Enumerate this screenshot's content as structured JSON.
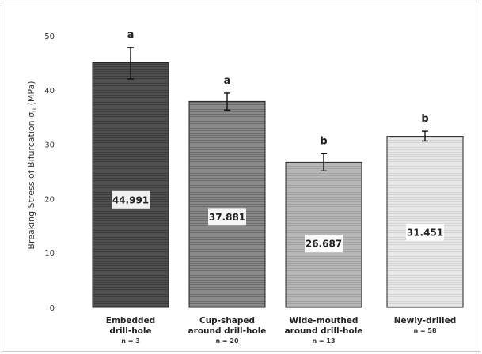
{
  "chart_data": {
    "type": "bar",
    "ylabel_prefix": "Breaking Stress of Bifurcation σ",
    "ylabel_sub": "u",
    "ylabel_suffix": " (MPa)",
    "ylim": [
      0,
      50
    ],
    "yticks": [
      0,
      10,
      20,
      30,
      40,
      50
    ],
    "grid": false,
    "legend": "none",
    "categories": [
      {
        "label_lines": [
          "Embedded",
          "drill-hole"
        ],
        "n_text": "n = 3",
        "value": 44.991,
        "value_label": "44.991",
        "error_low": 42.0,
        "error_high": 47.8,
        "group_letter": "a",
        "fill": "#505050",
        "stripe": "#3c3c3c"
      },
      {
        "label_lines": [
          "Cup-shaped",
          "around drill-hole"
        ],
        "n_text": "n = 20",
        "value": 37.881,
        "value_label": "37.881",
        "error_low": 36.3,
        "error_high": 39.4,
        "group_letter": "a",
        "fill": "#8a8a8a",
        "stripe": "#6c6c6c"
      },
      {
        "label_lines": [
          "Wide-mouthed",
          "around drill-hole"
        ],
        "n_text": "n = 13",
        "value": 26.687,
        "value_label": "26.687",
        "error_low": 25.1,
        "error_high": 28.3,
        "group_letter": "b",
        "fill": "#b7b7b7",
        "stripe": "#a2a2a2"
      },
      {
        "label_lines": [
          "Newly-drilled"
        ],
        "n_text": "n = 58",
        "value": 31.451,
        "value_label": "31.451",
        "error_low": 30.6,
        "error_high": 32.4,
        "group_letter": "b",
        "fill": "#e8e8e8",
        "stripe": "#d4d4d4"
      }
    ]
  }
}
